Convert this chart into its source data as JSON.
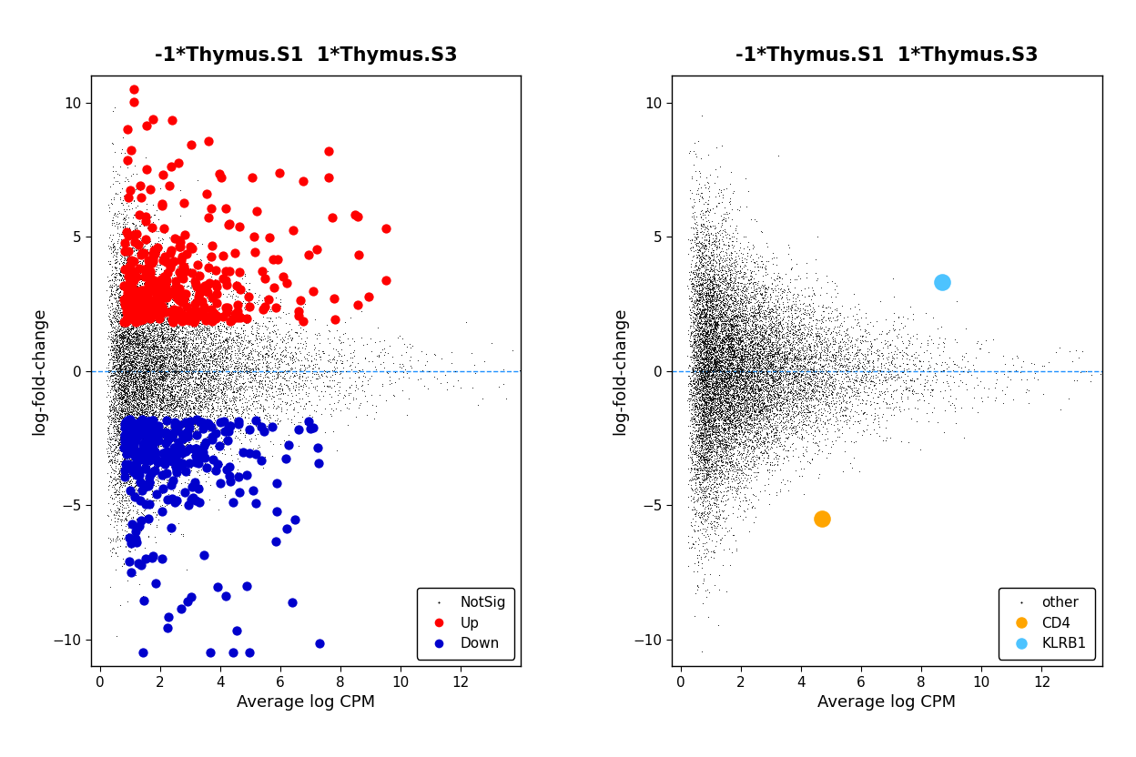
{
  "title": "-1*Thymus.S1  1*Thymus.S3",
  "xlabel": "Average log CPM",
  "ylabel": "log-fold-change",
  "xlim": [
    -0.3,
    14
  ],
  "ylim": [
    -11,
    11
  ],
  "xticks": [
    0,
    2,
    4,
    6,
    8,
    10,
    12
  ],
  "yticks": [
    -10,
    -5,
    0,
    5,
    10
  ],
  "dashed_line_color": "#1E90FF",
  "background_color": "#ffffff",
  "plot1": {
    "notsig_color": "#000000",
    "up_color": "#FF0000",
    "down_color": "#0000CC",
    "notsig_size": 1.5,
    "up_size": 55,
    "down_size": 55,
    "notsig_alpha": 1.0,
    "up_alpha": 1.0,
    "down_alpha": 1.0
  },
  "plot2": {
    "other_color": "#000000",
    "cd4_color": "#FFA500",
    "klrb1_color": "#4DC3FF",
    "other_size": 1.5,
    "marker_size": 180,
    "other_alpha": 1.0,
    "cd4_x": 4.7,
    "cd4_y": -5.5,
    "klrb1_x": 8.7,
    "klrb1_y": 3.3
  },
  "seed": 42,
  "n_notsig": 14000,
  "n_up": 380,
  "n_down": 320,
  "n_other": 16000
}
